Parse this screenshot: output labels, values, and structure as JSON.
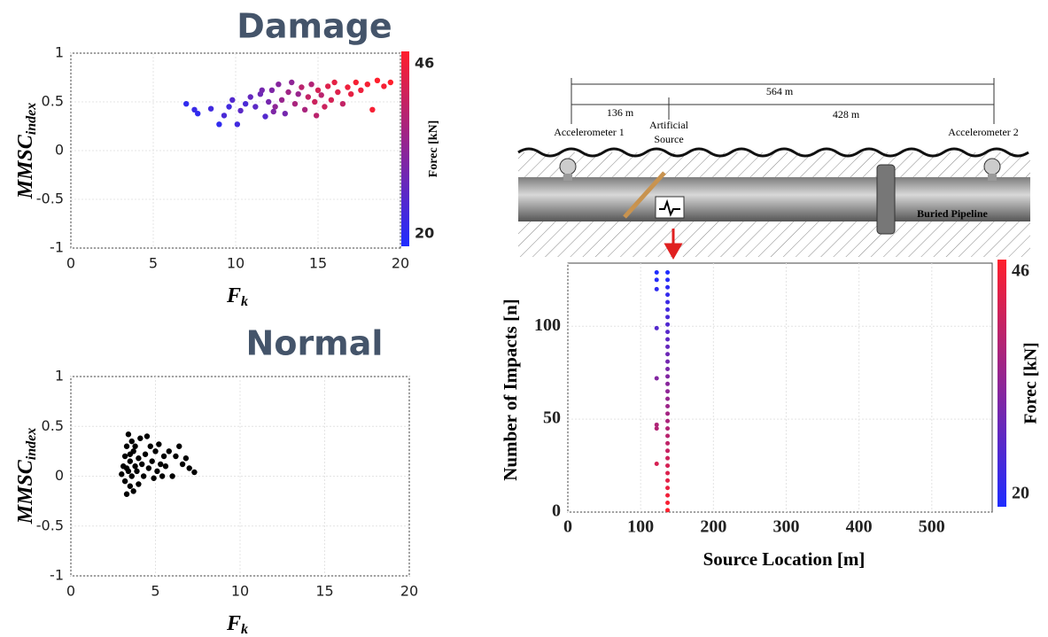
{
  "chart_data": [
    {
      "type": "scatter",
      "title": "Damage",
      "x_label": "F",
      "x_label_sub": "k",
      "y_label": "MMSC",
      "y_label_sub": "index",
      "xlim": [
        0,
        20
      ],
      "xticks": [
        0,
        5,
        10,
        15,
        20
      ],
      "ylim": [
        -1,
        1
      ],
      "yticks": [
        -1,
        -0.5,
        0,
        0.5,
        1
      ],
      "grid": true,
      "colormap": [
        "#1f2cff",
        "#ff1f2c"
      ],
      "clim": [
        20,
        46
      ],
      "cticks": [
        20,
        46
      ],
      "colorbar_label": "Forec [kN]",
      "x": [
        7,
        7.5,
        7.7,
        8.5,
        9,
        9.3,
        9.6,
        9.8,
        10.1,
        10.3,
        10.6,
        10.9,
        11.2,
        11.5,
        11.8,
        12,
        12.2,
        12.4,
        12.6,
        12.8,
        13,
        13.2,
        13.4,
        13.6,
        13.8,
        14,
        14.2,
        14.4,
        14.6,
        14.8,
        15,
        15.2,
        15.4,
        15.6,
        15.8,
        16,
        16.2,
        16.5,
        16.8,
        17,
        17.3,
        17.6,
        18,
        18.3,
        18.6,
        19,
        19.4,
        12.3,
        14.9,
        11.6
      ],
      "values": [
        0.48,
        0.42,
        0.38,
        0.43,
        0.27,
        0.36,
        0.45,
        0.52,
        0.27,
        0.41,
        0.48,
        0.55,
        0.45,
        0.58,
        0.35,
        0.5,
        0.62,
        0.45,
        0.68,
        0.52,
        0.38,
        0.6,
        0.7,
        0.48,
        0.58,
        0.65,
        0.42,
        0.55,
        0.68,
        0.5,
        0.62,
        0.57,
        0.45,
        0.66,
        0.52,
        0.7,
        0.6,
        0.48,
        0.65,
        0.58,
        0.7,
        0.62,
        0.68,
        0.42,
        0.72,
        0.66,
        0.7,
        0.4,
        0.36,
        0.62
      ],
      "force": [
        22,
        23,
        22,
        24,
        22,
        25,
        24,
        26,
        24,
        27,
        25,
        28,
        27,
        29,
        26,
        30,
        31,
        33,
        32,
        34,
        30,
        35,
        33,
        36,
        34,
        38,
        36,
        39,
        37,
        40,
        41,
        38,
        40,
        42,
        41,
        43,
        42,
        39,
        44,
        43,
        45,
        44,
        45,
        45,
        46,
        45,
        46,
        31,
        38,
        30
      ]
    },
    {
      "type": "scatter",
      "title": "Normal",
      "x_label": "F",
      "x_label_sub": "k",
      "y_label": "MMSC",
      "y_label_sub": "index",
      "xlim": [
        0,
        20
      ],
      "xticks": [
        0,
        5,
        10,
        15,
        20
      ],
      "ylim": [
        -1,
        1
      ],
      "yticks": [
        -1,
        -0.5,
        0,
        0.5,
        1
      ],
      "grid": true,
      "color": "#000000",
      "x": [
        3,
        3.1,
        3.2,
        3.2,
        3.3,
        3.3,
        3.4,
        3.4,
        3.5,
        3.5,
        3.6,
        3.6,
        3.7,
        3.7,
        3.8,
        3.8,
        3.9,
        4,
        4,
        4.1,
        4.2,
        4.3,
        4.4,
        4.5,
        4.6,
        4.7,
        4.8,
        4.9,
        5,
        5.1,
        5.2,
        5.3,
        5.4,
        5.5,
        5.6,
        5.8,
        6,
        6.2,
        6.4,
        6.6,
        6.8,
        7,
        7.3,
        3.3,
        3.5
      ],
      "values": [
        0.02,
        0.1,
        -0.05,
        0.2,
        0.3,
        -0.18,
        0.42,
        0.05,
        0.15,
        -0.1,
        0.35,
        0.0,
        0.25,
        -0.15,
        0.1,
        0.3,
        0.05,
        0.18,
        -0.08,
        0.38,
        0.12,
        0.0,
        0.22,
        0.4,
        0.08,
        0.3,
        0.15,
        -0.02,
        0.25,
        0.05,
        0.32,
        0.12,
        0.0,
        0.2,
        0.1,
        0.25,
        0.0,
        0.2,
        0.3,
        0.12,
        0.18,
        0.08,
        0.04,
        0.08,
        0.22
      ]
    },
    {
      "type": "scatter",
      "x_label": "Source Location [m]",
      "y_label": "Number of Impacts [n]",
      "xlim": [
        0,
        583
      ],
      "xticks": [
        0,
        100,
        200,
        300,
        400,
        500
      ],
      "ylim": [
        0,
        134
      ],
      "yticks": [
        0,
        50,
        100
      ],
      "grid": true,
      "colormap": [
        "#1f2cff",
        "#ff1f2c"
      ],
      "clim": [
        20,
        46
      ],
      "cticks": [
        20,
        46
      ],
      "colorbar_label": "Forec [kN]",
      "x": [
        137,
        137,
        137,
        137,
        137,
        137,
        137,
        137,
        137,
        137,
        137,
        137,
        137,
        137,
        137,
        137,
        137,
        137,
        137,
        137,
        137,
        137,
        137,
        137,
        137,
        137,
        137,
        137,
        137,
        137,
        137,
        137,
        137,
        122,
        122,
        122,
        122,
        122,
        122,
        122,
        122
      ],
      "values": [
        1,
        5,
        9,
        13,
        17,
        21,
        25,
        29,
        33,
        37,
        41,
        45,
        49,
        53,
        57,
        61,
        65,
        69,
        73,
        77,
        81,
        85,
        89,
        93,
        97,
        101,
        105,
        109,
        113,
        117,
        121,
        125,
        129,
        26,
        45,
        47,
        72,
        99,
        120,
        125,
        129
      ],
      "force": [
        46,
        45.2,
        44.4,
        43.6,
        42.8,
        41.9,
        41.1,
        40.3,
        39.5,
        38.7,
        37.9,
        37.1,
        36.3,
        35.4,
        34.6,
        33.8,
        33,
        32.2,
        31.4,
        30.6,
        29.8,
        28.9,
        28.1,
        27.3,
        26.5,
        25.7,
        24.9,
        24.1,
        23.3,
        22.4,
        21.6,
        20.8,
        20,
        41.2,
        37.1,
        36.7,
        31.6,
        26.1,
        21.8,
        20.8,
        20
      ]
    }
  ],
  "diagram": {
    "total": "564 m",
    "left": "136 m",
    "right": "428 m",
    "sensor1": "Accelerometer 1",
    "source": [
      "Artificial",
      "Source"
    ],
    "sensor2": "Accelerometer 2",
    "pipe": "Buried Pipeline"
  }
}
